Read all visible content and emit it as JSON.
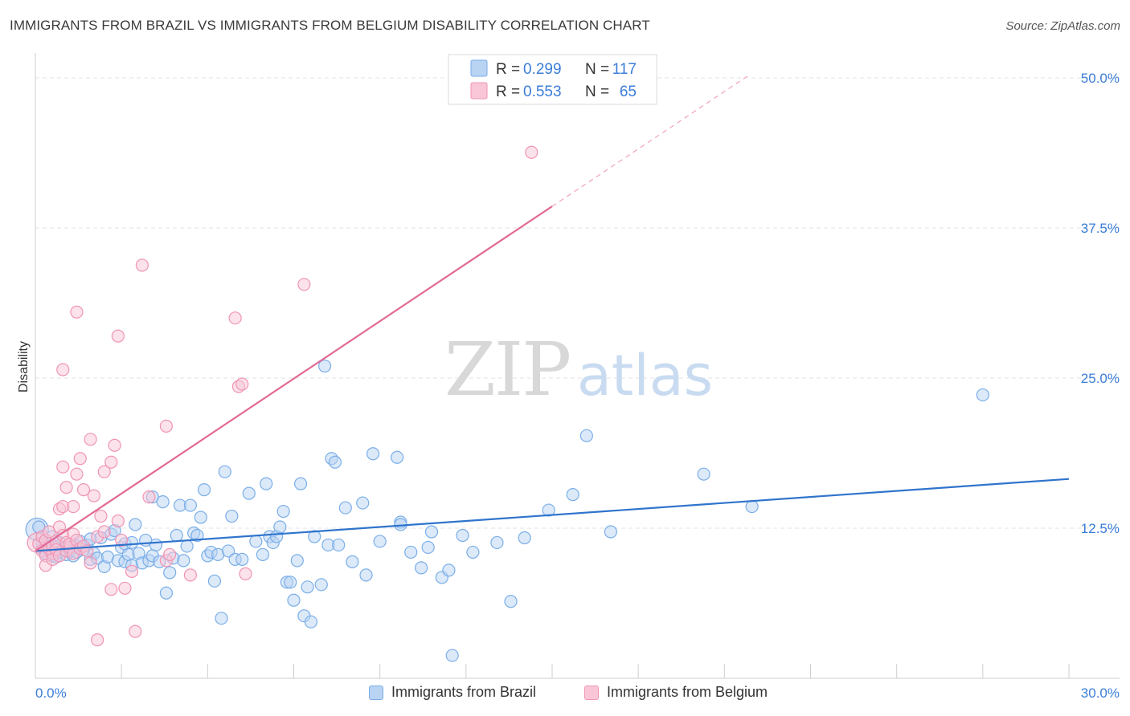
{
  "chart_data": {
    "type": "scatter",
    "title": "IMMIGRANTS FROM BRAZIL VS IMMIGRANTS FROM BELGIUM DISABILITY CORRELATION CHART",
    "source": "Source: ZipAtlas.com",
    "ylabel": "Disability",
    "xlim": [
      0,
      30
    ],
    "ylim": [
      0,
      50
    ],
    "x_tick_labels": [
      "0.0%",
      "30.0%"
    ],
    "y_ticks": [
      {
        "value": 12.5,
        "label": "12.5%"
      },
      {
        "value": 25.0,
        "label": "25.0%"
      },
      {
        "value": 37.5,
        "label": "37.5%"
      },
      {
        "value": 50.0,
        "label": "50.0%"
      }
    ],
    "watermark": {
      "part1": "ZIP",
      "part2": "atlas"
    },
    "legend": {
      "r_label": "R =",
      "n_label": "N =",
      "entries": [
        {
          "r": "0.299",
          "n": "117"
        },
        {
          "r": "0.553",
          "n": "65"
        }
      ]
    },
    "series": [
      {
        "name": "Immigrants from Brazil",
        "color": "#7aaee8",
        "fill": "#b9d3f3",
        "line_color": "#2f74cc",
        "trend": {
          "x0": 0,
          "y0": 10.6,
          "x1": 30,
          "y1": 16.6
        },
        "points": [
          [
            0.1,
            12.6
          ],
          [
            0.2,
            11.2
          ],
          [
            0.2,
            10.8
          ],
          [
            0.3,
            11.5
          ],
          [
            0.3,
            10.4
          ],
          [
            0.4,
            11.0
          ],
          [
            0.4,
            10.6
          ],
          [
            0.5,
            11.8
          ],
          [
            0.5,
            10.2
          ],
          [
            0.6,
            10.9
          ],
          [
            0.6,
            10.1
          ],
          [
            0.7,
            11.3
          ],
          [
            0.7,
            10.5
          ],
          [
            0.8,
            10.8
          ],
          [
            0.9,
            10.3
          ],
          [
            1.0,
            11.2
          ],
          [
            1.0,
            10.6
          ],
          [
            1.1,
            10.9
          ],
          [
            1.1,
            10.2
          ],
          [
            1.2,
            11.0
          ],
          [
            1.2,
            10.5
          ],
          [
            1.3,
            11.4
          ],
          [
            1.4,
            10.7
          ],
          [
            1.5,
            11.1
          ],
          [
            1.6,
            9.9
          ],
          [
            1.6,
            11.6
          ],
          [
            1.7,
            10.4
          ],
          [
            1.8,
            10.0
          ],
          [
            1.9,
            11.7
          ],
          [
            2.0,
            9.3
          ],
          [
            2.1,
            10.1
          ],
          [
            2.2,
            12.0
          ],
          [
            2.3,
            12.3
          ],
          [
            2.4,
            9.8
          ],
          [
            2.5,
            10.9
          ],
          [
            2.6,
            11.2
          ],
          [
            2.6,
            9.7
          ],
          [
            2.7,
            10.3
          ],
          [
            2.8,
            11.3
          ],
          [
            2.8,
            9.4
          ],
          [
            2.9,
            12.8
          ],
          [
            3.0,
            10.4
          ],
          [
            3.1,
            9.6
          ],
          [
            3.2,
            11.5
          ],
          [
            3.3,
            9.8
          ],
          [
            3.4,
            15.1
          ],
          [
            3.4,
            10.2
          ],
          [
            3.5,
            11.1
          ],
          [
            3.6,
            9.7
          ],
          [
            3.7,
            14.7
          ],
          [
            3.8,
            7.1
          ],
          [
            3.9,
            8.8
          ],
          [
            4.0,
            10.0
          ],
          [
            4.1,
            11.9
          ],
          [
            4.2,
            14.4
          ],
          [
            4.3,
            9.8
          ],
          [
            4.4,
            11.0
          ],
          [
            4.5,
            14.4
          ],
          [
            4.6,
            12.1
          ],
          [
            4.7,
            11.9
          ],
          [
            4.8,
            13.4
          ],
          [
            4.9,
            15.7
          ],
          [
            5.0,
            10.2
          ],
          [
            5.1,
            10.5
          ],
          [
            5.2,
            8.1
          ],
          [
            5.3,
            10.3
          ],
          [
            5.4,
            5.0
          ],
          [
            5.5,
            17.2
          ],
          [
            5.6,
            10.6
          ],
          [
            5.7,
            13.5
          ],
          [
            5.8,
            9.9
          ],
          [
            6.0,
            9.9
          ],
          [
            6.2,
            15.4
          ],
          [
            6.4,
            11.4
          ],
          [
            6.6,
            10.3
          ],
          [
            6.7,
            16.2
          ],
          [
            6.8,
            11.8
          ],
          [
            6.9,
            11.3
          ],
          [
            7.0,
            11.8
          ],
          [
            7.1,
            12.6
          ],
          [
            7.2,
            13.9
          ],
          [
            7.3,
            8.0
          ],
          [
            7.4,
            8.0
          ],
          [
            7.5,
            6.5
          ],
          [
            7.6,
            9.8
          ],
          [
            7.7,
            16.2
          ],
          [
            7.8,
            5.2
          ],
          [
            7.9,
            7.6
          ],
          [
            8.0,
            4.7
          ],
          [
            8.1,
            11.8
          ],
          [
            8.3,
            7.8
          ],
          [
            8.4,
            26.0
          ],
          [
            8.5,
            11.1
          ],
          [
            8.6,
            18.3
          ],
          [
            8.7,
            18.0
          ],
          [
            8.8,
            11.1
          ],
          [
            9.0,
            14.2
          ],
          [
            9.2,
            9.7
          ],
          [
            9.5,
            14.6
          ],
          [
            9.6,
            8.6
          ],
          [
            9.8,
            18.7
          ],
          [
            10.0,
            11.4
          ],
          [
            10.5,
            18.4
          ],
          [
            10.6,
            13.0
          ],
          [
            10.6,
            12.8
          ],
          [
            10.9,
            10.5
          ],
          [
            11.2,
            9.2
          ],
          [
            11.4,
            10.9
          ],
          [
            11.5,
            12.2
          ],
          [
            11.8,
            8.4
          ],
          [
            12.0,
            9.0
          ],
          [
            12.1,
            1.9
          ],
          [
            12.4,
            11.9
          ],
          [
            12.7,
            10.5
          ],
          [
            13.4,
            11.3
          ],
          [
            13.8,
            6.4
          ],
          [
            14.2,
            11.7
          ],
          [
            14.9,
            14.0
          ],
          [
            15.6,
            15.3
          ],
          [
            16.0,
            20.2
          ],
          [
            16.7,
            12.2
          ],
          [
            19.4,
            17.0
          ],
          [
            20.8,
            14.3
          ],
          [
            27.5,
            23.6
          ]
        ]
      },
      {
        "name": "Immigrants from Belgium",
        "color": "#f095b4",
        "fill": "#f8c6d7",
        "line_color": "#e26a95",
        "trend": {
          "x0": 0,
          "y0": 10.6,
          "x1": 15,
          "y1": 39.3
        },
        "trend_dashed": {
          "x0": 15,
          "y0": 39.3,
          "x1": 20.7,
          "y1": 50.2
        },
        "points": [
          [
            0.1,
            11.2
          ],
          [
            0.2,
            10.6
          ],
          [
            0.2,
            11.8
          ],
          [
            0.3,
            10.2
          ],
          [
            0.3,
            11.5
          ],
          [
            0.3,
            9.4
          ],
          [
            0.4,
            10.8
          ],
          [
            0.4,
            12.2
          ],
          [
            0.5,
            10.4
          ],
          [
            0.5,
            11.0
          ],
          [
            0.5,
            9.9
          ],
          [
            0.6,
            11.4
          ],
          [
            0.6,
            10.7
          ],
          [
            0.7,
            12.6
          ],
          [
            0.7,
            14.1
          ],
          [
            0.7,
            10.2
          ],
          [
            0.8,
            11.9
          ],
          [
            0.8,
            14.3
          ],
          [
            0.8,
            17.6
          ],
          [
            0.8,
            25.7
          ],
          [
            0.9,
            10.6
          ],
          [
            0.9,
            11.3
          ],
          [
            0.9,
            15.9
          ],
          [
            1.0,
            10.9
          ],
          [
            1.0,
            11.2
          ],
          [
            1.1,
            10.4
          ],
          [
            1.1,
            12.0
          ],
          [
            1.1,
            14.3
          ],
          [
            1.2,
            17.0
          ],
          [
            1.2,
            30.5
          ],
          [
            1.2,
            11.5
          ],
          [
            1.3,
            10.8
          ],
          [
            1.3,
            18.3
          ],
          [
            1.4,
            15.7
          ],
          [
            1.4,
            11.0
          ],
          [
            1.5,
            10.6
          ],
          [
            1.6,
            19.9
          ],
          [
            1.6,
            9.6
          ],
          [
            1.7,
            15.2
          ],
          [
            1.8,
            3.2
          ],
          [
            1.8,
            11.8
          ],
          [
            1.9,
            13.5
          ],
          [
            2.0,
            17.2
          ],
          [
            2.0,
            12.2
          ],
          [
            2.2,
            18.0
          ],
          [
            2.2,
            7.4
          ],
          [
            2.3,
            19.4
          ],
          [
            2.4,
            28.5
          ],
          [
            2.4,
            13.1
          ],
          [
            2.5,
            11.5
          ],
          [
            2.6,
            7.5
          ],
          [
            2.8,
            8.9
          ],
          [
            2.9,
            3.9
          ],
          [
            3.1,
            34.4
          ],
          [
            3.3,
            15.1
          ],
          [
            3.8,
            9.8
          ],
          [
            3.8,
            21.0
          ],
          [
            3.9,
            10.3
          ],
          [
            4.5,
            8.6
          ],
          [
            5.8,
            30.0
          ],
          [
            5.9,
            24.3
          ],
          [
            6.0,
            24.5
          ],
          [
            6.1,
            8.7
          ],
          [
            7.8,
            32.8
          ],
          [
            14.4,
            43.8
          ]
        ]
      }
    ]
  }
}
